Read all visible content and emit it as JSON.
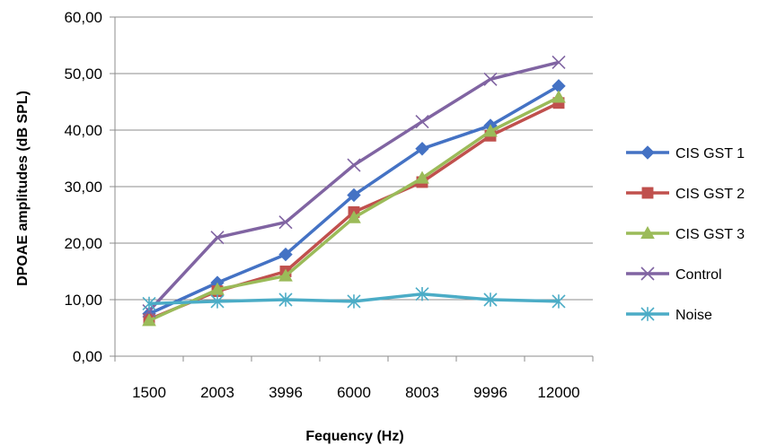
{
  "chart_data": {
    "type": "line",
    "title": "",
    "xlabel": "Fequency (Hz)",
    "ylabel": "DPOAE amplitudes  (dB SPL)",
    "categories": [
      "1500",
      "2003",
      "3996",
      "6000",
      "8003",
      "9996",
      "12000"
    ],
    "ylim": [
      0,
      60
    ],
    "yticks": [
      "0,00",
      "10,00",
      "20,00",
      "30,00",
      "40,00",
      "50,00",
      "60,00"
    ],
    "grid": "horizontal",
    "legend_position": "right",
    "series": [
      {
        "name": "CIS GST 1",
        "color": "#4472C4",
        "marker": "diamond",
        "values": [
          7.5,
          13.0,
          18.0,
          28.5,
          36.7,
          40.8,
          47.8
        ]
      },
      {
        "name": "CIS GST 2",
        "color": "#C0504D",
        "marker": "square",
        "values": [
          6.5,
          11.5,
          15.0,
          25.5,
          30.8,
          39.0,
          44.8
        ]
      },
      {
        "name": "CIS GST 3",
        "color": "#9BBB59",
        "marker": "triangle",
        "values": [
          6.3,
          11.8,
          14.2,
          24.5,
          31.5,
          39.8,
          45.8
        ]
      },
      {
        "name": "Control",
        "color": "#8064A2",
        "marker": "x",
        "values": [
          8.0,
          21.0,
          23.7,
          33.8,
          41.5,
          49.0,
          52.0
        ]
      },
      {
        "name": "Noise",
        "color": "#4BACC6",
        "marker": "star",
        "values": [
          9.3,
          9.7,
          10.0,
          9.7,
          11.0,
          10.0,
          9.7
        ]
      }
    ]
  }
}
